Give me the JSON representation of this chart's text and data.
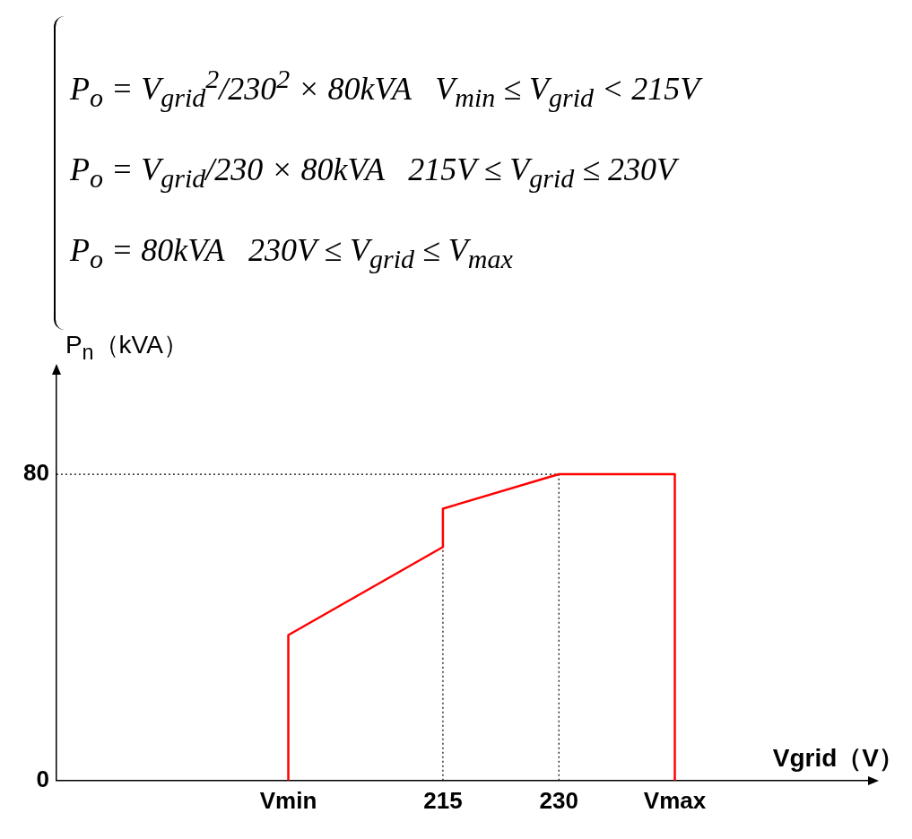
{
  "chart_data": {
    "type": "line",
    "annotations": [
      "P$_{o}$ = V$_{grid}$$^{2}$/230$^{2}$ × 80kVA   V$_{min}$ ≤ V$_{grid}$ < 215V",
      "P$_{o}$ = V$_{grid}$/230 × 80kVA   215V ≤ V$_{grid}$ ≤ 230V",
      "P$_{o}$ = 80kVA   230V ≤ V$_{grid}$ ≤ V$_{max}$"
    ],
    "xlabel": "Vgrid（V）",
    "ylabel": "P$_{n}$（kVA）",
    "x": [
      195,
      195,
      215,
      215,
      230,
      245,
      245
    ],
    "series": [
      {
        "color": "#ff0000",
        "values": [
          0,
          38,
          61,
          71,
          80,
          80,
          0
        ]
      }
    ],
    "xlim": [
      165,
      270
    ],
    "xticks": [
      {
        "value": 195,
        "label": "Vmin"
      },
      215,
      230,
      {
        "value": 245,
        "label": "Vmax"
      }
    ],
    "ylim": [
      0,
      106
    ],
    "yticks": [
      0,
      80
    ],
    "ref_lines": [
      {
        "axis": "y",
        "value": 80,
        "color": "#000000",
        "line_style": "dotted"
      },
      {
        "axis": "x",
        "value": 215,
        "color": "#000000",
        "line_style": "dotted"
      },
      {
        "axis": "x",
        "value": 230,
        "color": "#000000",
        "line_style": "dotted"
      }
    ],
    "legend": false,
    "grid": false
  }
}
